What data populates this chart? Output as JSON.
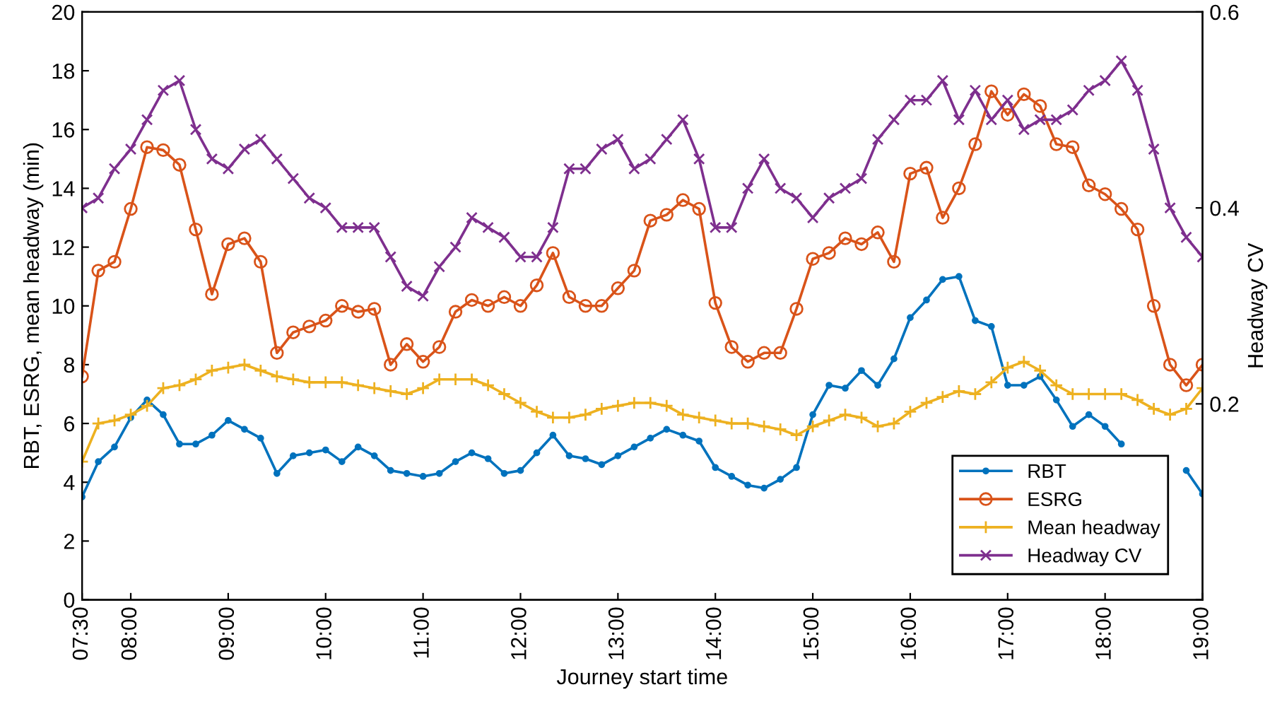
{
  "chart_data": {
    "type": "line",
    "xlabel": "Journey start time",
    "ylabel": "RBT, ESRG, mean headway (min)",
    "y2label": "Headway CV",
    "x": [
      7.5,
      7.667,
      7.833,
      8,
      8.167,
      8.333,
      8.5,
      8.667,
      8.833,
      9,
      9.167,
      9.333,
      9.5,
      9.667,
      9.833,
      10,
      10.167,
      10.333,
      10.5,
      10.667,
      10.833,
      11,
      11.167,
      11.333,
      11.5,
      11.667,
      11.833,
      12,
      12.167,
      12.333,
      12.5,
      12.667,
      12.833,
      13,
      13.167,
      13.333,
      13.5,
      13.667,
      13.833,
      14,
      14.167,
      14.333,
      14.5,
      14.667,
      14.833,
      15,
      15.167,
      15.333,
      15.5,
      15.667,
      15.833,
      16,
      16.167,
      16.333,
      16.5,
      16.667,
      16.833,
      17,
      17.167,
      17.333,
      17.5,
      17.667,
      17.833,
      18,
      18.167,
      18.333,
      18.5,
      18.667,
      18.833,
      19
    ],
    "series": [
      {
        "name": "RBT",
        "color": "#0072bd",
        "marker": "point",
        "values": [
          3.5,
          4.7,
          5.2,
          6.2,
          6.8,
          6.3,
          5.3,
          5.3,
          5.6,
          6.1,
          5.8,
          5.5,
          4.3,
          4.9,
          5.0,
          5.1,
          4.7,
          5.2,
          4.9,
          4.4,
          4.3,
          4.2,
          4.3,
          4.7,
          5.0,
          4.8,
          4.3,
          4.4,
          5.0,
          5.6,
          4.9,
          4.8,
          4.6,
          4.9,
          5.2,
          5.5,
          5.8,
          5.6,
          5.4,
          4.5,
          4.2,
          3.9,
          3.8,
          4.1,
          4.5,
          6.3,
          7.3,
          7.2,
          7.8,
          7.3,
          8.2,
          9.6,
          10.2,
          10.9,
          11.0,
          9.5,
          9.3,
          7.3,
          7.3,
          7.6,
          6.8,
          5.9,
          6.3,
          5.9,
          5.3,
          null,
          null,
          null,
          4.4,
          3.6
        ]
      },
      {
        "name": "ESRG",
        "color": "#d95319",
        "marker": "circle",
        "values": [
          7.6,
          11.2,
          11.5,
          13.3,
          15.4,
          15.3,
          14.8,
          12.6,
          10.4,
          12.1,
          12.3,
          11.5,
          8.4,
          9.1,
          9.3,
          9.5,
          10.0,
          9.8,
          9.9,
          8.0,
          8.7,
          8.1,
          8.6,
          9.8,
          10.2,
          10.0,
          10.3,
          10.0,
          10.7,
          11.8,
          10.3,
          10.0,
          10.0,
          10.6,
          11.2,
          12.9,
          13.1,
          13.6,
          13.3,
          10.1,
          8.6,
          8.1,
          8.4,
          8.4,
          9.9,
          11.6,
          11.8,
          12.3,
          12.1,
          12.5,
          11.5,
          14.5,
          14.7,
          13.0,
          14.0,
          15.5,
          17.3,
          16.5,
          17.2,
          16.8,
          15.5,
          15.4,
          14.1,
          13.8,
          13.3,
          12.6,
          10.0,
          8.0,
          7.3,
          8.0
        ]
      },
      {
        "name": "Mean headway",
        "color": "#edb120",
        "marker": "plus",
        "values": [
          4.7,
          6.0,
          6.1,
          6.3,
          6.6,
          7.2,
          7.3,
          7.5,
          7.8,
          7.9,
          8.0,
          7.8,
          7.6,
          7.5,
          7.4,
          7.4,
          7.4,
          7.3,
          7.2,
          7.1,
          7.0,
          7.2,
          7.5,
          7.5,
          7.5,
          7.3,
          7.0,
          6.7,
          6.4,
          6.2,
          6.2,
          6.3,
          6.5,
          6.6,
          6.7,
          6.7,
          6.6,
          6.3,
          6.2,
          6.1,
          6.0,
          6.0,
          5.9,
          5.8,
          5.6,
          5.9,
          6.1,
          6.3,
          6.2,
          5.9,
          6.0,
          6.4,
          6.7,
          6.9,
          7.1,
          7.0,
          7.4,
          7.9,
          8.1,
          7.8,
          7.3,
          7.0,
          7.0,
          7.0,
          7.0,
          6.8,
          6.5,
          6.3,
          6.5,
          7.2
        ]
      },
      {
        "name": "Headway CV",
        "color": "#7e2f8e",
        "marker": "cross",
        "axis": "y2",
        "values": [
          0.4,
          0.41,
          0.44,
          0.46,
          0.49,
          0.52,
          0.53,
          0.48,
          0.45,
          0.44,
          0.46,
          0.47,
          0.45,
          0.43,
          0.41,
          0.4,
          0.38,
          0.38,
          0.38,
          0.35,
          0.32,
          0.31,
          0.34,
          0.36,
          0.39,
          0.38,
          0.37,
          0.35,
          0.35,
          0.38,
          0.44,
          0.44,
          0.46,
          0.47,
          0.44,
          0.45,
          0.47,
          0.49,
          0.45,
          0.38,
          0.38,
          0.42,
          0.45,
          0.42,
          0.41,
          0.39,
          0.41,
          0.42,
          0.43,
          0.47,
          0.49,
          0.51,
          0.51,
          0.53,
          0.49,
          0.52,
          0.49,
          0.51,
          0.48,
          0.49,
          0.49,
          0.5,
          0.52,
          0.53,
          0.55,
          0.52,
          0.46,
          0.4,
          0.37,
          0.35
        ]
      }
    ],
    "xlim": [
      7.5,
      19
    ],
    "xticks": [
      {
        "value": 7.5,
        "label": "07:30"
      },
      {
        "value": 8,
        "label": "08:00"
      },
      {
        "value": 9,
        "label": "09:00"
      },
      {
        "value": 10,
        "label": "10:00"
      },
      {
        "value": 11,
        "label": "11:00"
      },
      {
        "value": 12,
        "label": "12:00"
      },
      {
        "value": 13,
        "label": "13:00"
      },
      {
        "value": 14,
        "label": "14:00"
      },
      {
        "value": 15,
        "label": "15:00"
      },
      {
        "value": 16,
        "label": "16:00"
      },
      {
        "value": 17,
        "label": "17:00"
      },
      {
        "value": 18,
        "label": "18:00"
      },
      {
        "value": 19,
        "label": "19:00"
      }
    ],
    "ylim": [
      0,
      20
    ],
    "yticks": [
      0,
      2,
      4,
      6,
      8,
      10,
      12,
      14,
      16,
      18,
      20
    ],
    "y2lim": [
      0,
      0.6
    ],
    "y2ticks": [
      {
        "value": 0,
        "label": null
      },
      0.2,
      0.4,
      0.6
    ],
    "grid": false,
    "legend": "bottom right",
    "line_style": "solid"
  }
}
